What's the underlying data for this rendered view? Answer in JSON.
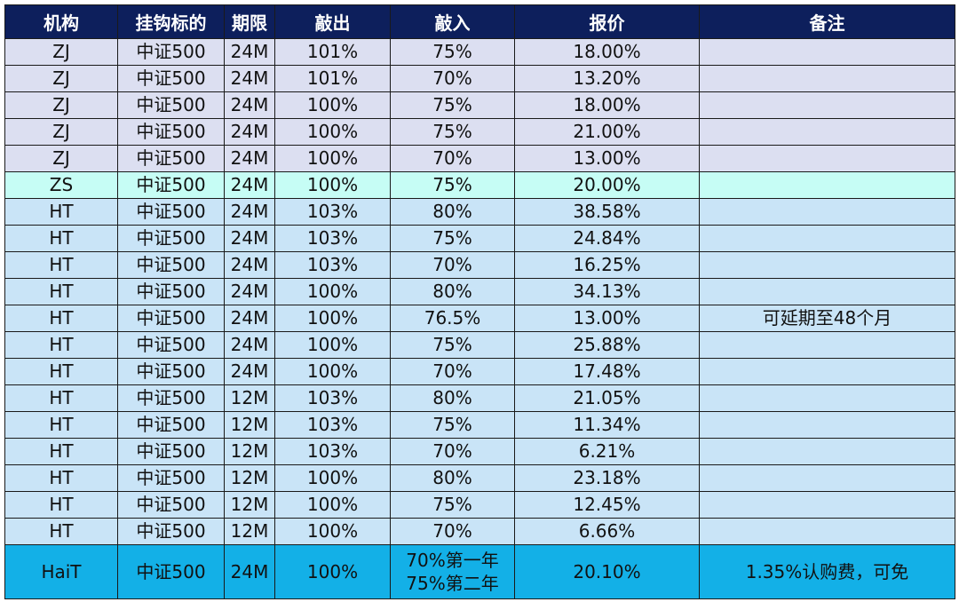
{
  "headers": [
    "机构",
    "挂钩标的",
    "期限",
    "敲出",
    "敲入",
    "报价",
    "备注"
  ],
  "rows": [
    {
      "org": "ZJ",
      "underlying": "中证500",
      "term": "24M",
      "knock_out": "101%",
      "knock_in": "75%",
      "quote": "18.00%",
      "note": ""
    },
    {
      "org": "ZJ",
      "underlying": "中证500",
      "term": "24M",
      "knock_out": "101%",
      "knock_in": "70%",
      "quote": "13.20%",
      "note": ""
    },
    {
      "org": "ZJ",
      "underlying": "中证500",
      "term": "24M",
      "knock_out": "100%",
      "knock_in": "75%",
      "quote": "18.00%",
      "note": ""
    },
    {
      "org": "ZJ",
      "underlying": "中证500",
      "term": "24M",
      "knock_out": "100%",
      "knock_in": "75%",
      "quote": "21.00%",
      "note": ""
    },
    {
      "org": "ZJ",
      "underlying": "中证500",
      "term": "24M",
      "knock_out": "100%",
      "knock_in": "70%",
      "quote": "13.00%",
      "note": ""
    },
    {
      "org": "ZS",
      "underlying": "中证500",
      "term": "24M",
      "knock_out": "100%",
      "knock_in": "75%",
      "quote": "20.00%",
      "note": ""
    },
    {
      "org": "HT",
      "underlying": "中证500",
      "term": "24M",
      "knock_out": "103%",
      "knock_in": "80%",
      "quote": "38.58%",
      "note": ""
    },
    {
      "org": "HT",
      "underlying": "中证500",
      "term": "24M",
      "knock_out": "103%",
      "knock_in": "75%",
      "quote": "24.84%",
      "note": ""
    },
    {
      "org": "HT",
      "underlying": "中证500",
      "term": "24M",
      "knock_out": "103%",
      "knock_in": "70%",
      "quote": "16.25%",
      "note": ""
    },
    {
      "org": "HT",
      "underlying": "中证500",
      "term": "24M",
      "knock_out": "100%",
      "knock_in": "80%",
      "quote": "34.13%",
      "note": ""
    },
    {
      "org": "HT",
      "underlying": "中证500",
      "term": "24M",
      "knock_out": "100%",
      "knock_in": "76.5%",
      "quote": "13.00%",
      "note": "可延期至48个月"
    },
    {
      "org": "HT",
      "underlying": "中证500",
      "term": "24M",
      "knock_out": "100%",
      "knock_in": "75%",
      "quote": "25.88%",
      "note": ""
    },
    {
      "org": "HT",
      "underlying": "中证500",
      "term": "24M",
      "knock_out": "100%",
      "knock_in": "70%",
      "quote": "17.48%",
      "note": ""
    },
    {
      "org": "HT",
      "underlying": "中证500",
      "term": "12M",
      "knock_out": "103%",
      "knock_in": "80%",
      "quote": "21.05%",
      "note": ""
    },
    {
      "org": "HT",
      "underlying": "中证500",
      "term": "12M",
      "knock_out": "103%",
      "knock_in": "75%",
      "quote": "11.34%",
      "note": ""
    },
    {
      "org": "HT",
      "underlying": "中证500",
      "term": "12M",
      "knock_out": "103%",
      "knock_in": "70%",
      "quote": "6.21%",
      "note": ""
    },
    {
      "org": "HT",
      "underlying": "中证500",
      "term": "12M",
      "knock_out": "100%",
      "knock_in": "80%",
      "quote": "23.18%",
      "note": ""
    },
    {
      "org": "HT",
      "underlying": "中证500",
      "term": "12M",
      "knock_out": "100%",
      "knock_in": "75%",
      "quote": "12.45%",
      "note": ""
    },
    {
      "org": "HT",
      "underlying": "中证500",
      "term": "12M",
      "knock_out": "100%",
      "knock_in": "70%",
      "quote": "6.66%",
      "note": ""
    }
  ],
  "last_row": {
    "org": "HaiT",
    "underlying": "中证500",
    "term": "24M",
    "knock_out": "100%",
    "knock_in_line1": "70%第一年",
    "knock_in_line2": "75%第二年",
    "quote": "20.10%",
    "note": "1.35%认购费，可免"
  },
  "colors": {
    "header_bg": "#0d1f5c",
    "zj_row": "#dcdff1",
    "zs_row": "#c6fdf5",
    "ht_row": "#c9e4f7",
    "hait_row": "#13b0e7"
  }
}
